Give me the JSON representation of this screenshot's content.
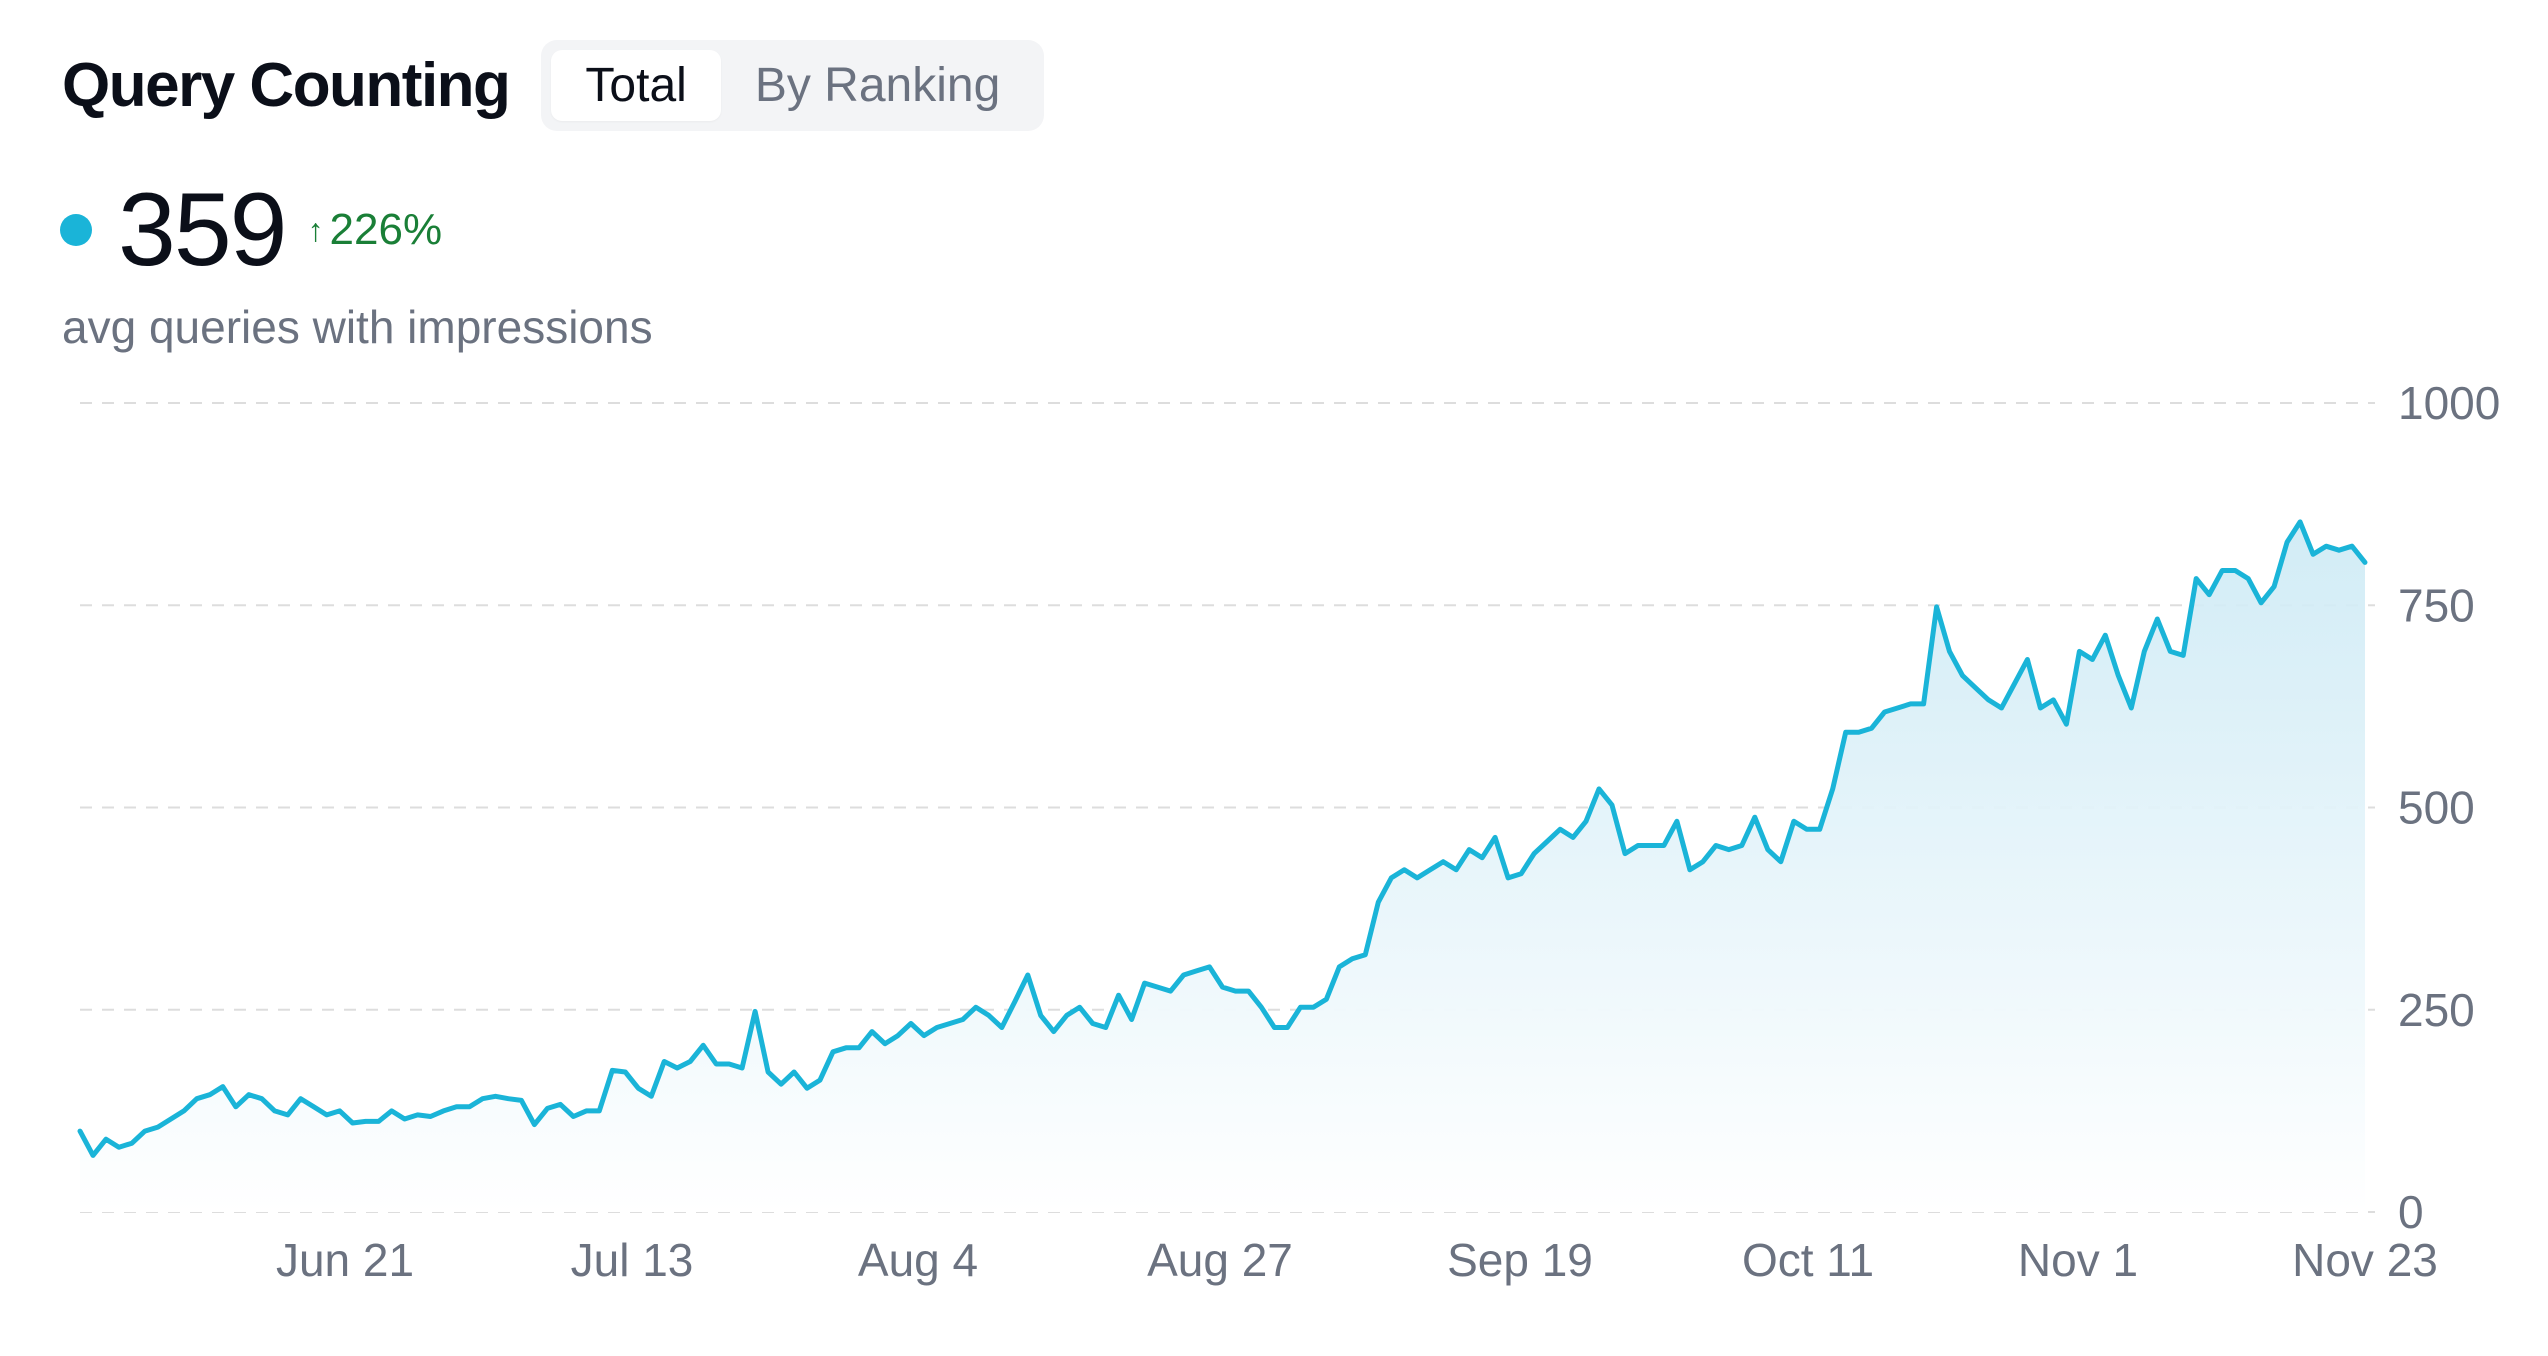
{
  "header": {
    "title": "Query Counting",
    "tabs": [
      {
        "label": "Total",
        "active": true
      },
      {
        "label": "By Ranking",
        "active": false
      }
    ]
  },
  "metric": {
    "value": "359",
    "change": "226%",
    "change_direction": "up",
    "label": "avg queries with impressions",
    "dot_color": "#1ab4d8",
    "change_color": "#1a7f37"
  },
  "colors": {
    "line": "#1ab4d8",
    "fill_top": "#cdeaf5",
    "fill_bottom": "#ffffff",
    "grid": "#dddddd"
  },
  "chart_data": {
    "type": "area",
    "title": "",
    "xlabel": "",
    "ylabel": "",
    "ylim": [
      0,
      1000
    ],
    "yticks": [
      0,
      250,
      500,
      750,
      1000
    ],
    "xticks": [
      "Jun 21",
      "Jul 13",
      "Aug 4",
      "Aug 27",
      "Sep 19",
      "Oct 11",
      "Nov 1",
      "Nov 23"
    ],
    "grid": true,
    "legend": false,
    "series": [
      {
        "values": [
          100,
          70,
          90,
          80,
          85,
          100,
          105,
          115,
          125,
          140,
          145,
          155,
          130,
          145,
          140,
          125,
          120,
          140,
          130,
          120,
          125,
          110,
          112,
          112,
          125,
          115,
          120,
          118,
          125,
          130,
          130,
          140,
          143,
          140,
          138,
          108,
          128,
          133,
          118,
          125,
          125,
          175,
          173,
          153,
          143,
          186,
          178,
          186,
          206,
          183,
          183,
          178,
          248,
          173,
          158,
          173,
          153,
          163,
          198,
          203,
          203,
          223,
          208,
          218,
          233,
          218,
          228,
          233,
          238,
          253,
          243,
          228,
          260,
          293,
          243,
          223,
          243,
          253,
          233,
          228,
          268,
          238,
          283,
          278,
          273,
          293,
          298,
          303,
          278,
          273,
          273,
          253,
          228,
          228,
          253,
          253,
          263,
          303,
          313,
          318,
          383,
          413,
          423,
          413,
          423,
          433,
          423,
          448,
          438,
          463,
          413,
          418,
          443,
          458,
          473,
          463,
          483,
          523,
          503,
          443,
          453,
          453,
          453,
          483,
          423,
          433,
          453,
          448,
          453,
          488,
          448,
          433,
          483,
          473,
          473,
          523,
          593,
          593,
          598,
          618,
          623,
          628,
          628,
          748,
          693,
          663,
          648,
          633,
          623,
          653,
          683,
          623,
          633,
          603,
          693,
          683,
          713,
          663,
          623,
          693,
          733,
          693,
          688,
          783,
          763,
          793,
          793,
          783,
          753,
          773,
          828,
          853,
          813,
          823,
          818,
          823,
          803
        ]
      }
    ]
  }
}
